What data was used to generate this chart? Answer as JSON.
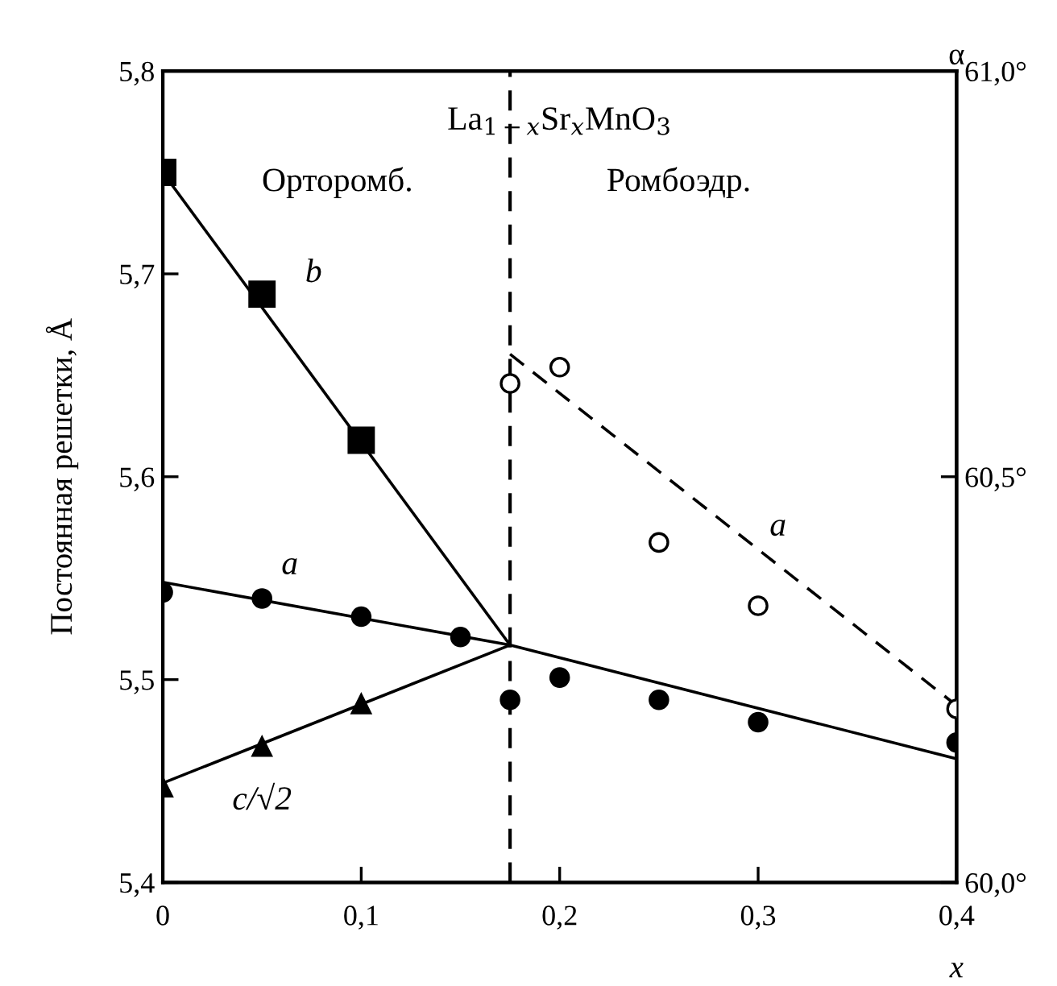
{
  "chart_data": {
    "type": "scatter",
    "xlabel": "x",
    "ylabel": "Постоянная решетки, Å",
    "y2label": "α",
    "xlim": [
      0,
      0.4
    ],
    "xticks": [
      0,
      {
        "value": 0.1,
        "label": "0,1"
      },
      {
        "value": 0.2,
        "label": "0,2"
      },
      {
        "value": 0.3,
        "label": "0,3"
      },
      {
        "value": 0.4,
        "label": "0,4"
      }
    ],
    "ylim": [
      5.4,
      5.8
    ],
    "yticks": [
      {
        "value": 5.4,
        "label": "5,4"
      },
      {
        "value": 5.5,
        "label": "5,5"
      },
      {
        "value": 5.6,
        "label": "5,6"
      },
      {
        "value": 5.7,
        "label": "5,7"
      },
      {
        "value": 5.8,
        "label": "5,8"
      }
    ],
    "y2lim": [
      60.0,
      61.0
    ],
    "y2ticks": [
      {
        "value": 60.0,
        "label": "60,0°"
      },
      {
        "value": 60.5,
        "label": "60,5°"
      },
      {
        "value": 61.0,
        "label": "61,0°"
      }
    ],
    "grid": false,
    "legend": false,
    "series": [
      {
        "marker": "square",
        "color": "#000000",
        "x": [
          0,
          0.05,
          0.1
        ],
        "values": [
          5.75,
          5.69,
          5.618
        ]
      },
      {
        "marker": "circle",
        "color": "#000000",
        "x": [
          0,
          0.05,
          0.1,
          0.15,
          0.175,
          0.2,
          0.25,
          0.3,
          0.4
        ],
        "values": [
          5.543,
          5.54,
          5.531,
          5.521,
          5.49,
          5.501,
          5.49,
          5.479,
          5.469
        ]
      },
      {
        "marker": "triangle",
        "color": "#000000",
        "x": [
          0,
          0.05,
          0.1
        ],
        "values": [
          5.447,
          5.467,
          5.488
        ]
      },
      {
        "marker": "circle",
        "axis": "y2",
        "color": "#000000",
        "x": [
          0.175,
          0.2,
          0.25,
          0.3,
          0.4
        ],
        "values": [
          60.615,
          60.635,
          60.419,
          60.341,
          60.214
        ]
      },
      {
        "type": "line",
        "marker": "none",
        "line_style": "solid",
        "color": "#000000",
        "x": [
          0,
          0.175
        ],
        "values": [
          5.75,
          5.517
        ]
      },
      {
        "type": "line",
        "marker": "none",
        "line_style": "solid",
        "color": "#000000",
        "x": [
          0,
          0.175,
          0.4
        ],
        "values": [
          5.548,
          5.517,
          5.461
        ]
      },
      {
        "type": "line",
        "marker": "none",
        "line_style": "solid",
        "color": "#000000",
        "x": [
          0,
          0.175
        ],
        "values": [
          5.449,
          5.517
        ]
      },
      {
        "type": "line",
        "marker": "none",
        "line_style": "dashed",
        "axis": "y2",
        "color": "#000000",
        "x": [
          0.175,
          0.4
        ],
        "values": [
          60.651,
          60.218
        ]
      }
    ],
    "ref_lines": [
      {
        "axis": "x",
        "value": 0.175,
        "line_style": "dashed",
        "color": "#000000"
      }
    ],
    "annotations": [
      "La$_{1−x}$Sr$_{x}$MnO$_{3}$",
      "Орторомб.",
      "Ромбоэдр.",
      "b",
      "a",
      "c/√2",
      "a"
    ]
  }
}
